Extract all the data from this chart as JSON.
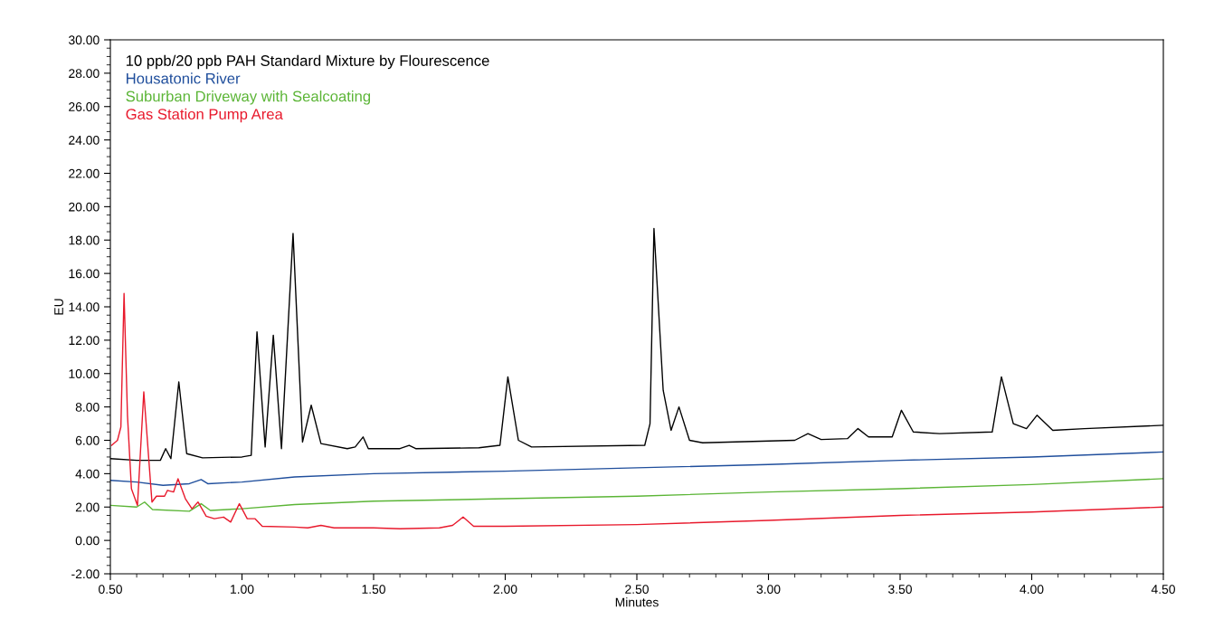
{
  "chart_data": {
    "type": "line",
    "xlabel": "Minutes",
    "ylabel": "EU",
    "xlim": [
      0.5,
      4.5
    ],
    "ylim": [
      -2,
      30
    ],
    "xticks": [
      {
        "value": 0.5,
        "label": "0.50"
      },
      {
        "value": 1.0,
        "label": "1.00"
      },
      {
        "value": 1.5,
        "label": "1.50"
      },
      {
        "value": 2.0,
        "label": "2.00"
      },
      {
        "value": 2.5,
        "label": "2.50"
      },
      {
        "value": 3.0,
        "label": "3.00"
      },
      {
        "value": 3.5,
        "label": "3.50"
      },
      {
        "value": 4.0,
        "label": "4.00"
      },
      {
        "value": 4.5,
        "label": "4.50"
      }
    ],
    "yticks": [
      {
        "value": -2,
        "label": "-2.00"
      },
      {
        "value": 0,
        "label": "0.00"
      },
      {
        "value": 2,
        "label": "2.00"
      },
      {
        "value": 4,
        "label": "4.00"
      },
      {
        "value": 6,
        "label": "6.00"
      },
      {
        "value": 8,
        "label": "8.00"
      },
      {
        "value": 10,
        "label": "10.00"
      },
      {
        "value": 12,
        "label": "12.00"
      },
      {
        "value": 14,
        "label": "14.00"
      },
      {
        "value": 16,
        "label": "16.00"
      },
      {
        "value": 18,
        "label": "18.00"
      },
      {
        "value": 20,
        "label": "20.00"
      },
      {
        "value": 22,
        "label": "22.00"
      },
      {
        "value": 24,
        "label": "24.00"
      },
      {
        "value": 26,
        "label": "26.00"
      },
      {
        "value": 28,
        "label": "28.00"
      },
      {
        "value": 30,
        "label": "30.00"
      }
    ],
    "grid": false,
    "legend": "top left",
    "marker": "none",
    "line_style": "solid",
    "series": [
      {
        "name": "10 ppb/20 ppb PAH Standard Mixture by Flourescence",
        "color": "#000000",
        "x": [
          0.5,
          0.6,
          0.69,
          0.71,
          0.73,
          0.76,
          0.79,
          0.85,
          1.0,
          1.035,
          1.057,
          1.088,
          1.119,
          1.15,
          1.194,
          1.23,
          1.263,
          1.3,
          1.4,
          1.43,
          1.46,
          1.48,
          1.6,
          1.635,
          1.66,
          1.9,
          1.98,
          2.01,
          2.05,
          2.1,
          2.53,
          2.55,
          2.565,
          2.6,
          2.63,
          2.66,
          2.7,
          2.75,
          3.1,
          3.15,
          3.2,
          3.3,
          3.34,
          3.38,
          3.47,
          3.505,
          3.55,
          3.65,
          3.85,
          3.885,
          3.93,
          3.98,
          4.02,
          4.08,
          4.2,
          4.5
        ],
        "values": [
          4.9,
          4.8,
          4.8,
          5.5,
          4.9,
          9.5,
          5.2,
          4.95,
          5.0,
          5.1,
          12.5,
          5.6,
          12.3,
          5.5,
          18.4,
          5.9,
          8.1,
          5.8,
          5.5,
          5.6,
          6.2,
          5.5,
          5.5,
          5.7,
          5.5,
          5.55,
          5.7,
          9.8,
          6.0,
          5.6,
          5.7,
          7.0,
          18.7,
          9.0,
          6.6,
          8.0,
          6.0,
          5.85,
          6.0,
          6.4,
          6.05,
          6.1,
          6.7,
          6.2,
          6.2,
          7.8,
          6.5,
          6.4,
          6.5,
          9.8,
          7.0,
          6.7,
          7.5,
          6.6,
          6.7,
          6.9
        ]
      },
      {
        "name": "Housatonic River",
        "color": "#1f4e9c",
        "x": [
          0.5,
          0.6,
          0.7,
          0.8,
          0.845,
          0.87,
          1.0,
          1.2,
          1.5,
          2.0,
          2.5,
          3.0,
          3.5,
          4.0,
          4.5
        ],
        "values": [
          3.6,
          3.5,
          3.3,
          3.4,
          3.65,
          3.4,
          3.5,
          3.8,
          4.0,
          4.15,
          4.35,
          4.55,
          4.8,
          5.0,
          5.3
        ]
      },
      {
        "name": "Suburban Driveway with Sealcoating",
        "color": "#5bb536",
        "x": [
          0.5,
          0.6,
          0.63,
          0.66,
          0.8,
          0.845,
          0.88,
          1.0,
          1.2,
          1.5,
          2.0,
          2.5,
          3.0,
          3.5,
          4.0,
          4.5
        ],
        "values": [
          2.1,
          2.0,
          2.3,
          1.85,
          1.75,
          2.2,
          1.8,
          1.9,
          2.15,
          2.35,
          2.5,
          2.65,
          2.9,
          3.1,
          3.35,
          3.7
        ]
      },
      {
        "name": "Gas Station Pump Area",
        "color": "#e8192c",
        "x": [
          0.505,
          0.527,
          0.54,
          0.552,
          0.565,
          0.58,
          0.603,
          0.627,
          0.658,
          0.675,
          0.706,
          0.717,
          0.74,
          0.757,
          0.785,
          0.81,
          0.833,
          0.864,
          0.895,
          0.93,
          0.957,
          0.99,
          1.02,
          1.05,
          1.077,
          1.2,
          1.25,
          1.3,
          1.35,
          1.5,
          1.6,
          1.75,
          1.8,
          1.84,
          1.88,
          2.0,
          2.5,
          3.0,
          3.5,
          4.0,
          4.5
        ],
        "values": [
          5.7,
          6.0,
          6.8,
          14.8,
          7.5,
          3.1,
          2.1,
          8.9,
          2.3,
          2.65,
          2.65,
          3.0,
          2.9,
          3.7,
          2.5,
          1.9,
          2.3,
          1.45,
          1.3,
          1.4,
          1.1,
          2.2,
          1.3,
          1.3,
          0.85,
          0.8,
          0.75,
          0.9,
          0.75,
          0.75,
          0.7,
          0.75,
          0.9,
          1.4,
          0.85,
          0.85,
          0.95,
          1.2,
          1.5,
          1.7,
          2.0
        ]
      }
    ]
  }
}
